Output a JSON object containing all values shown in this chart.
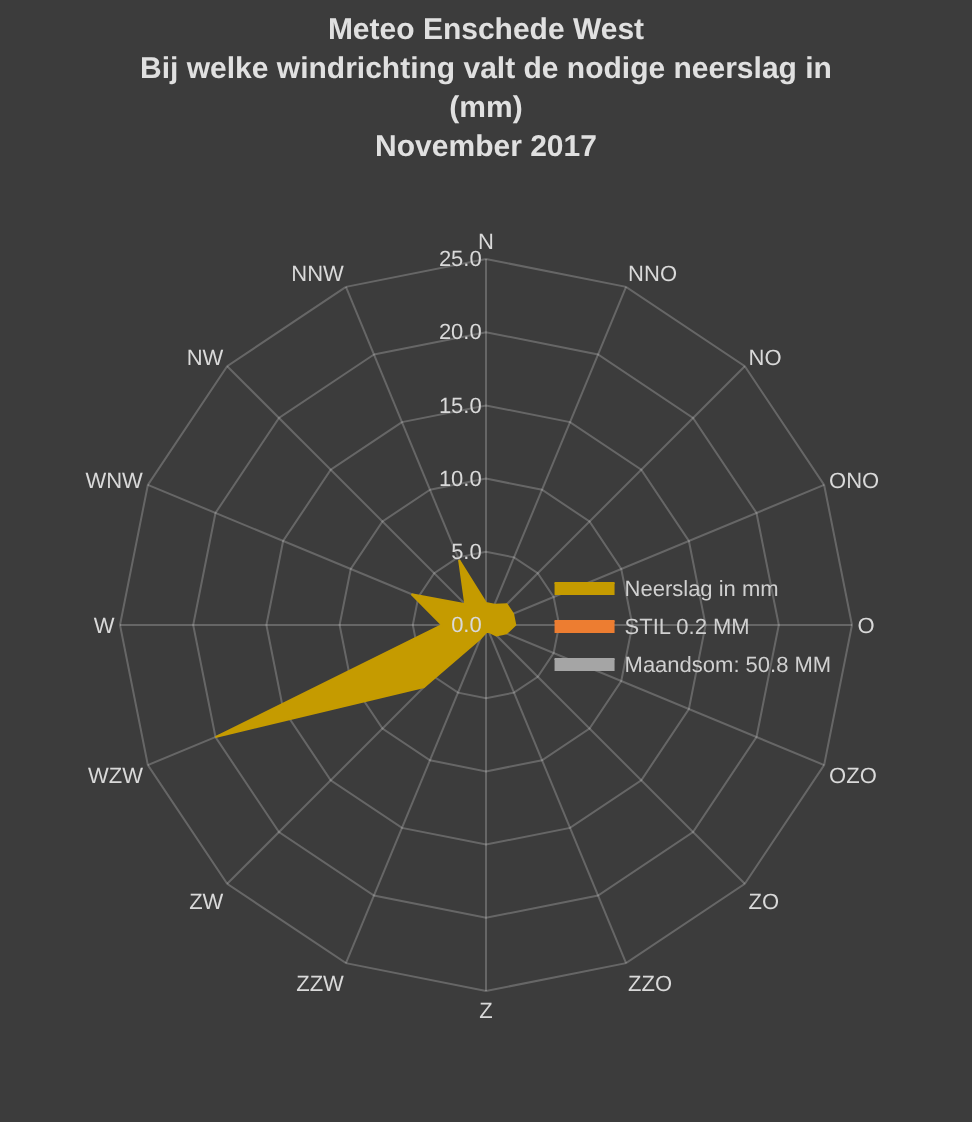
{
  "chart_data": {
    "type": "radar",
    "title": "Meteo Enschede West",
    "subtitle": "Bij welke windrichting valt de nodige neerslag in (mm)\nNovember 2017",
    "categories": [
      "N",
      "NNO",
      "NO",
      "ONO",
      "O",
      "OZO",
      "ZO",
      "ZZO",
      "Z",
      "ZZW",
      "ZW",
      "WZW",
      "W",
      "WNW",
      "NW",
      "NNW"
    ],
    "series": [
      {
        "name": "Neerslag in mm",
        "color": "#c59b00",
        "values": [
          1.5,
          1.5,
          2,
          2,
          2,
          1.5,
          1,
          0.5,
          0.5,
          1,
          6,
          20,
          3,
          5.5,
          2,
          4.8
        ]
      },
      {
        "name": "STIL 0.2 MM",
        "color": "#ed7d31",
        "values": [
          null,
          null,
          null,
          null,
          null,
          null,
          null,
          null,
          null,
          null,
          null,
          null,
          null,
          null,
          null,
          null
        ]
      },
      {
        "name": "Maandsom: 50.8 MM",
        "color": "#a5a5a5",
        "values": [
          null,
          null,
          null,
          null,
          null,
          null,
          null,
          null,
          null,
          null,
          null,
          null,
          null,
          null,
          null,
          null
        ]
      }
    ],
    "ylim": [
      0,
      25
    ],
    "yticks": [
      {
        "value": 0,
        "label": "0.0"
      },
      {
        "value": 5,
        "label": "5.0"
      },
      {
        "value": 10,
        "label": "10.0"
      },
      {
        "value": 15,
        "label": "15.0"
      },
      {
        "value": 20,
        "label": "20.0"
      },
      {
        "value": 25,
        "label": "25.0"
      }
    ],
    "grid": true,
    "legend": "right"
  }
}
